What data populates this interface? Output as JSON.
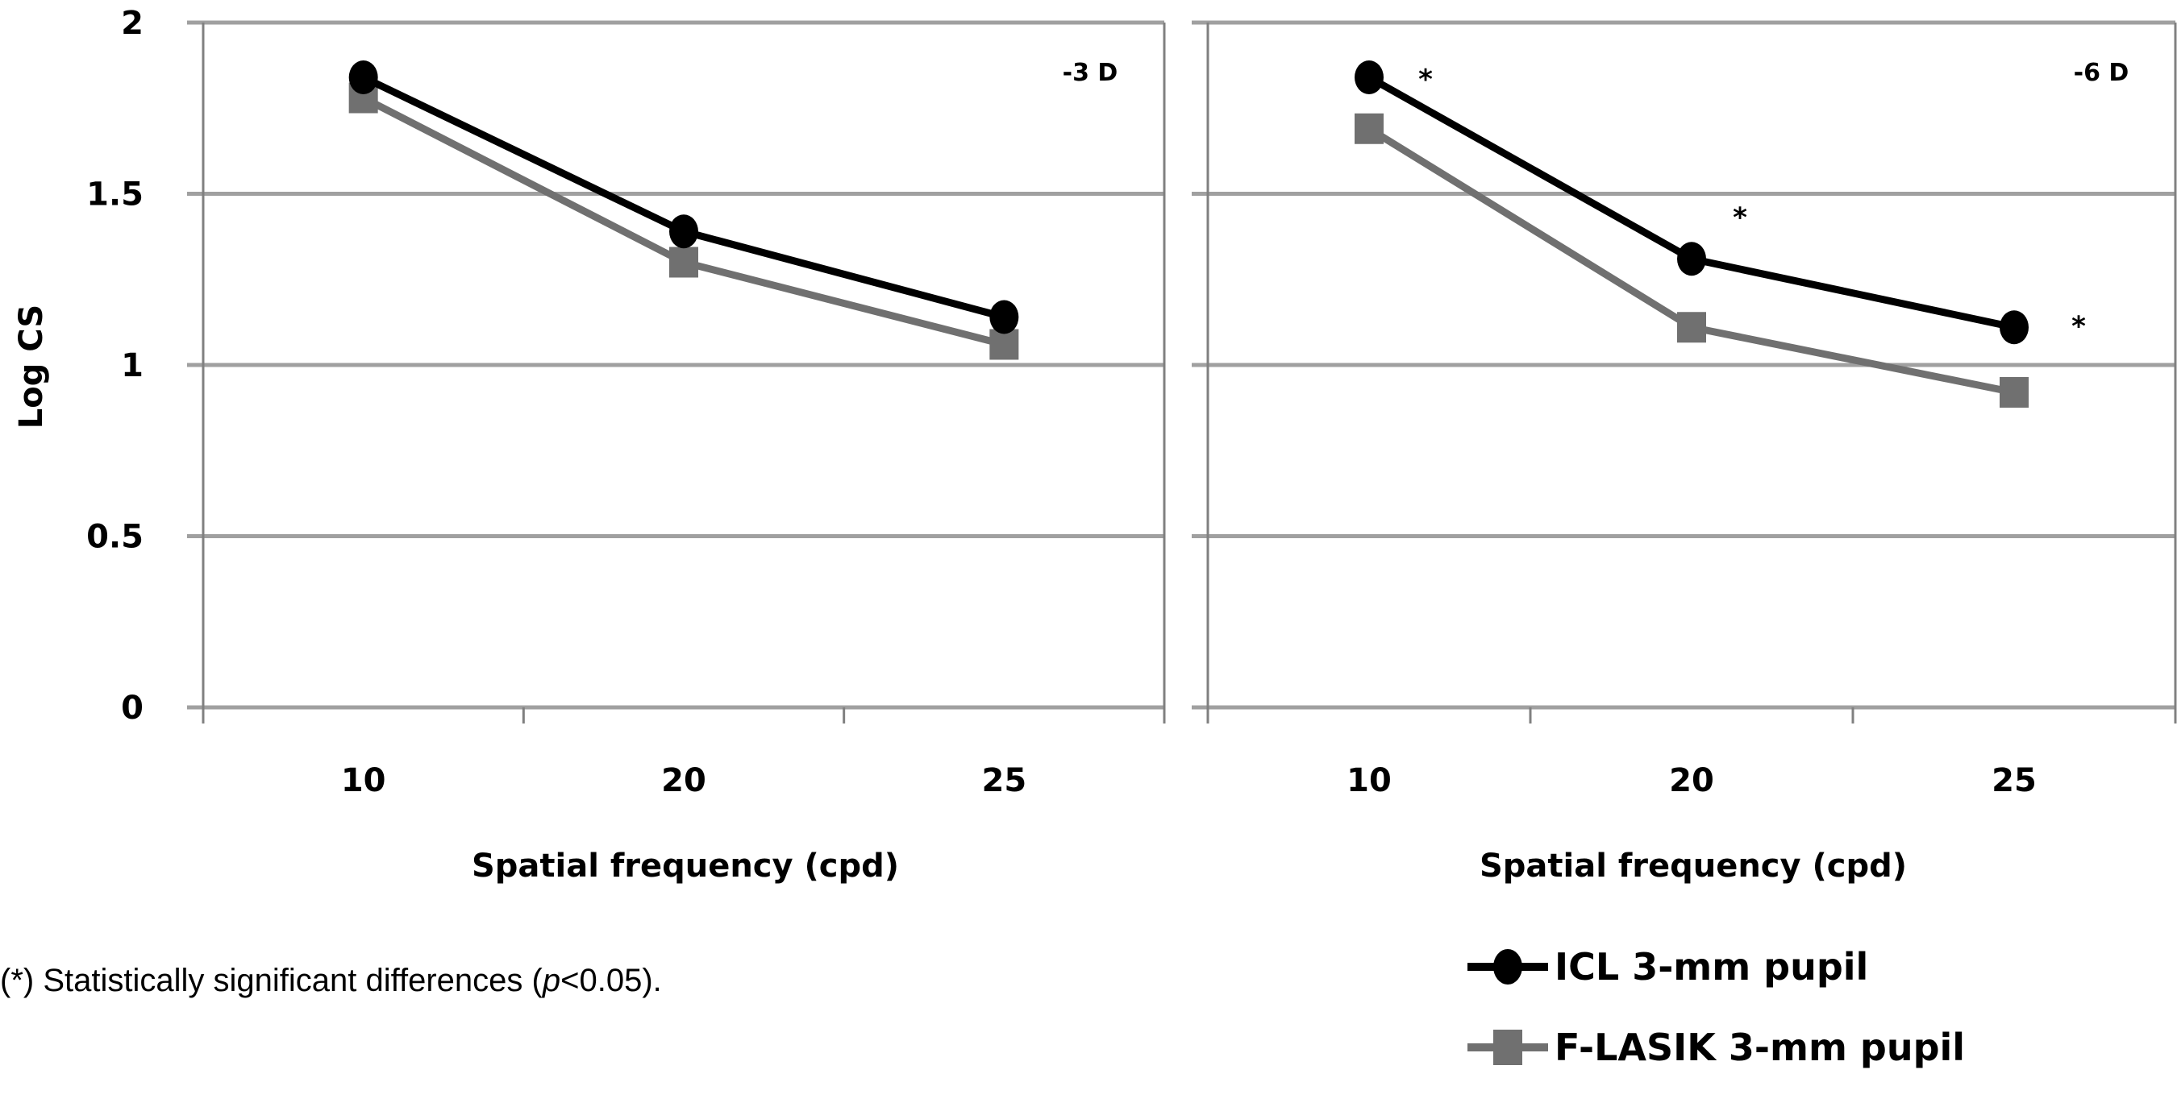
{
  "chart_data": [
    {
      "type": "line",
      "panel_label": "-3 D",
      "categories": [
        "10",
        "20",
        "25"
      ],
      "xlabel": "Spatial frequency (cpd)",
      "ylabel": "Log CS",
      "ylim": [
        0,
        2
      ],
      "yticks": [
        "0",
        "0.5",
        "1",
        "1.5",
        "2"
      ],
      "grid": true,
      "series": [
        {
          "name": "ICL 3-mm pupil",
          "marker": "circle",
          "color": "#000000",
          "values": [
            1.84,
            1.39,
            1.14
          ]
        },
        {
          "name": "F-LASIK 3-mm pupil",
          "marker": "square",
          "color": "#707070",
          "values": [
            1.78,
            1.3,
            1.06
          ]
        }
      ],
      "significance": []
    },
    {
      "type": "line",
      "panel_label": "-6 D",
      "categories": [
        "10",
        "20",
        "25"
      ],
      "xlabel": "Spatial frequency (cpd)",
      "ylabel": "",
      "ylim": [
        0,
        2
      ],
      "grid": true,
      "series": [
        {
          "name": "ICL 3-mm pupil",
          "marker": "circle",
          "color": "#000000",
          "values": [
            1.84,
            1.31,
            1.11
          ]
        },
        {
          "name": "F-LASIK 3-mm pupil",
          "marker": "square",
          "color": "#707070",
          "values": [
            1.69,
            1.11,
            0.92
          ]
        }
      ],
      "significance": [
        {
          "category": "10",
          "mark": "*"
        },
        {
          "category": "20",
          "mark": "*"
        },
        {
          "category": "25",
          "mark": "*"
        }
      ]
    }
  ],
  "legend": {
    "position": "bottom-right",
    "items": [
      {
        "label": "ICL 3-mm pupil",
        "marker": "circle",
        "color": "#000000"
      },
      {
        "label": "F-LASIK 3-mm pupil",
        "marker": "square",
        "color": "#707070"
      }
    ]
  },
  "footnote": {
    "prefix": "(*) Statistically significant differences (",
    "italic": "p",
    "suffix": "<0.05)."
  },
  "colors": {
    "grid": "#a0a0a0",
    "axis": "#808080"
  }
}
